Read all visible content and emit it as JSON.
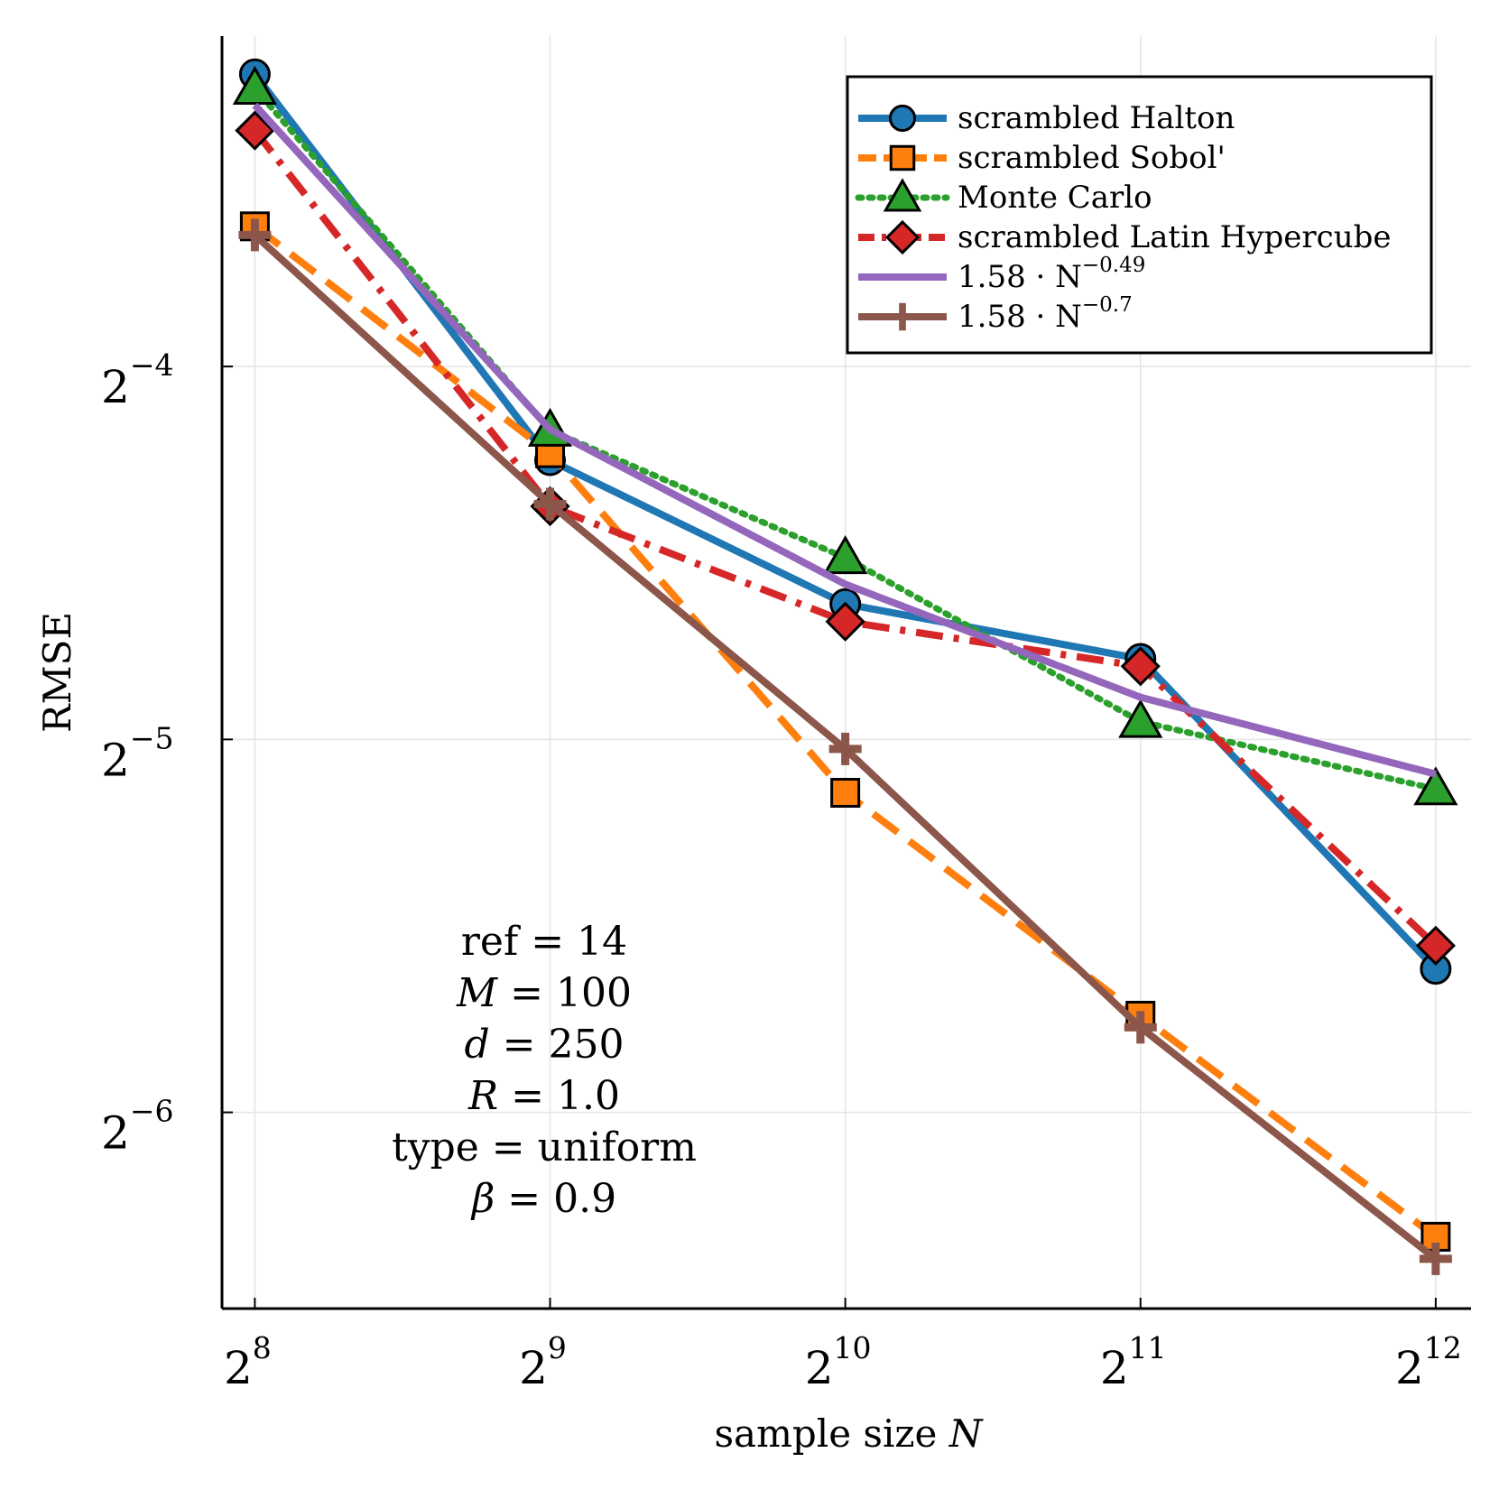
{
  "chart_data": {
    "type": "line",
    "xlabel": "sample size",
    "xlabel_var": "N",
    "ylabel": "RMSE",
    "x_scale": "log2",
    "y_scale": "log2",
    "x": [
      256,
      512,
      1024,
      2048,
      4096
    ],
    "x_ticks": [
      {
        "base": "2",
        "exp": "8"
      },
      {
        "base": "2",
        "exp": "9"
      },
      {
        "base": "2",
        "exp": "10"
      },
      {
        "base": "2",
        "exp": "11"
      },
      {
        "base": "2",
        "exp": "12"
      }
    ],
    "y_ticks": [
      {
        "base": "2",
        "exp": "−4",
        "value": 0.0625
      },
      {
        "base": "2",
        "exp": "−5",
        "value": 0.03125
      },
      {
        "base": "2",
        "exp": "−6",
        "value": 0.015625
      }
    ],
    "xlim": [
      237,
      4450
    ],
    "ylim": [
      0.01085,
      0.1155
    ],
    "grid": true,
    "legend_position": "top-right",
    "series": [
      {
        "name": "scrambled Halton",
        "color": "#1f77b4",
        "marker": "circle",
        "dash": "solid",
        "values": [
          0.1076,
          0.0525,
          0.0402,
          0.0363,
          0.0204
        ]
      },
      {
        "name": "scrambled Sobol'",
        "color": "#ff7f0e",
        "marker": "square",
        "dash": "dashed",
        "values": [
          0.0811,
          0.0532,
          0.0283,
          0.0187,
          0.0124
        ]
      },
      {
        "name": "Monte Carlo",
        "color": "#2ca02c",
        "marker": "triangle",
        "dash": "dotted",
        "values": [
          0.1048,
          0.0555,
          0.0438,
          0.0323,
          0.0285
        ]
      },
      {
        "name": "scrambled Latin Hypercube",
        "color": "#d62728",
        "marker": "diamond",
        "dash": "dashdot",
        "values": [
          0.0969,
          0.0482,
          0.0389,
          0.0358,
          0.0213
        ]
      },
      {
        "name": "1.58 · N",
        "name_exp": "−0.49",
        "color": "#9467bd",
        "marker": "none",
        "dash": "solid",
        "values": [
          0.1016,
          0.0556,
          0.0417,
          0.0338,
          0.0293
        ]
      },
      {
        "name": "1.58 · N",
        "name_exp": "−0.7",
        "color": "#8c564b",
        "marker": "cross",
        "dash": "solid",
        "values": [
          0.0798,
          0.0484,
          0.0307,
          0.0183,
          0.0119
        ]
      }
    ],
    "annotations": [
      {
        "label": "ref",
        "value": "14"
      },
      {
        "label": "M",
        "value": "100"
      },
      {
        "label": "d",
        "value": "250"
      },
      {
        "label": "R",
        "value": "1.0"
      },
      {
        "label": "type",
        "value": "uniform"
      },
      {
        "label": "β",
        "value": "0.9"
      }
    ]
  }
}
